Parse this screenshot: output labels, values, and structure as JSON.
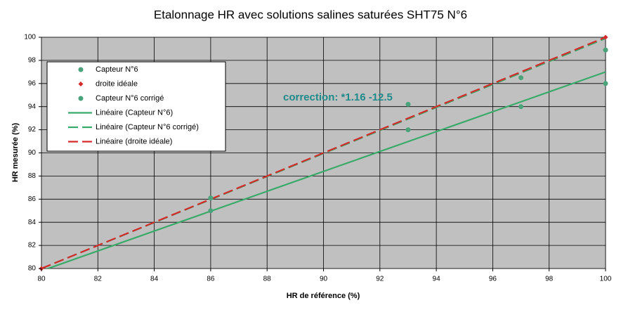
{
  "chart_data": {
    "type": "scatter",
    "title": "Etalonnage HR avec solutions salines saturées SHT75 N°6",
    "x_label": "HR de référence (%)",
    "y_label": "HR mesurée (%)",
    "annotation": "correction:  *1.16  -12.5",
    "xlim": [
      80,
      100
    ],
    "xticks": [
      80,
      82,
      84,
      86,
      88,
      90,
      92,
      94,
      96,
      98,
      100
    ],
    "ylim": [
      80,
      100
    ],
    "yticks": [
      80,
      82,
      84,
      86,
      88,
      90,
      92,
      94,
      96,
      98,
      100
    ],
    "grid": true,
    "legend": "upper left",
    "series": [
      {
        "name": "Capteur N°6",
        "color": "#4aa37a",
        "marker": "circle",
        "x": [
          86,
          93,
          97,
          100
        ],
        "values": [
          85,
          92,
          94,
          96
        ]
      },
      {
        "name": "droite idéale",
        "color": "#d42a2a",
        "marker": "diamond",
        "x": [
          80,
          100
        ],
        "values": [
          80,
          100
        ]
      },
      {
        "name": "Capteur N°6 corrigé",
        "color": "#4aa37a",
        "marker": "circle",
        "x": [
          86,
          93,
          97,
          100
        ],
        "values": [
          86.1,
          94.2,
          96.5,
          98.9
        ]
      },
      {
        "name": "Linéaire (Capteur N°6)",
        "color": "#3aaa6a",
        "line": "solid",
        "x": [
          80,
          100
        ],
        "values": [
          79.8,
          97
        ]
      },
      {
        "name": "Linéaire (Capteur N°6 corrigé)",
        "color": "#3aaa6a",
        "line": "dashed",
        "x": [
          80,
          100
        ],
        "values": [
          80,
          99.9
        ]
      },
      {
        "name": "Linéaire (droite idéale)",
        "color": "#d42a2a",
        "line": "dashed",
        "x": [
          80,
          100
        ],
        "values": [
          80,
          100
        ]
      }
    ]
  }
}
